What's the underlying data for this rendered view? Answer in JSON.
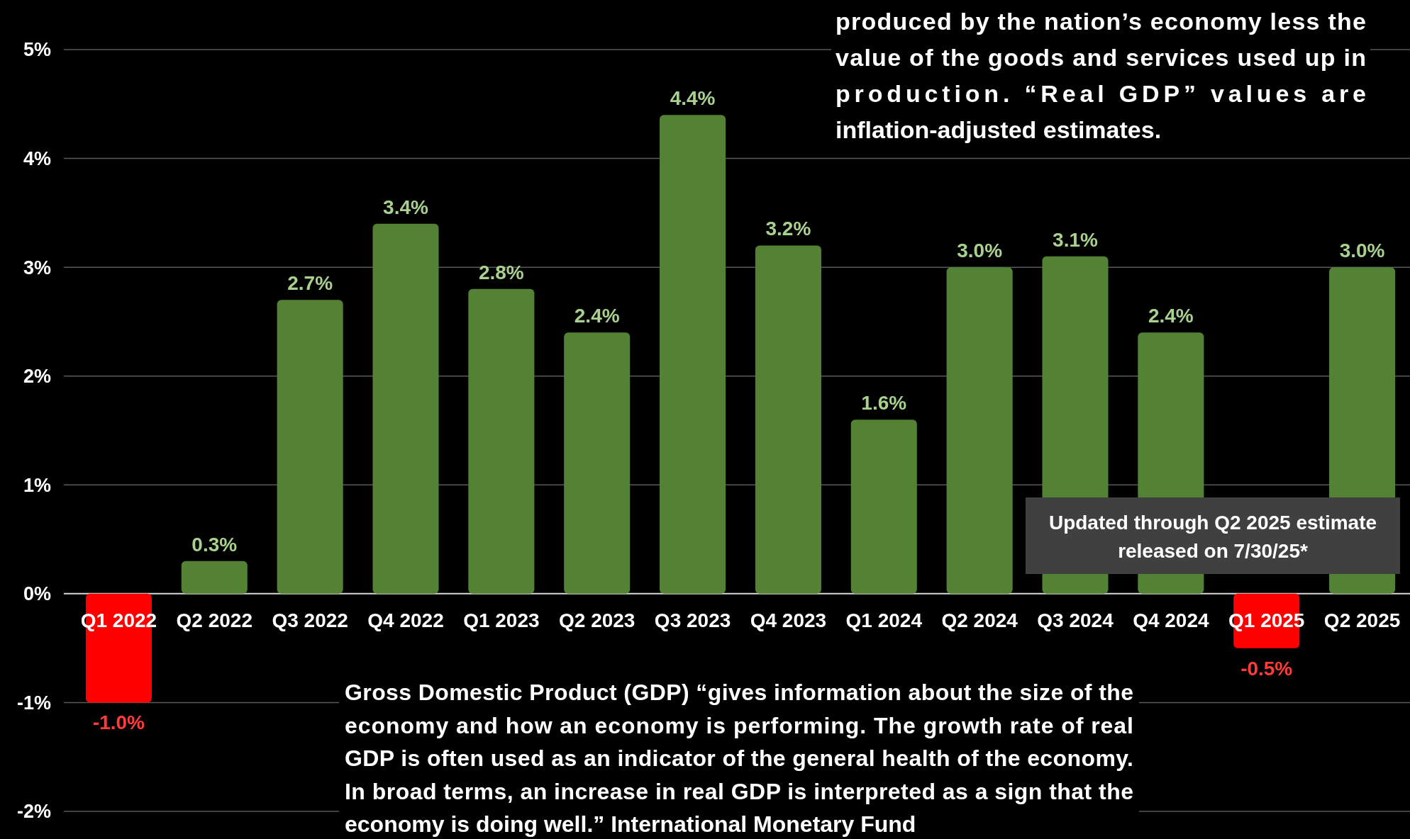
{
  "chart_data": {
    "type": "bar",
    "categories": [
      "Q1 2022",
      "Q2 2022",
      "Q3 2022",
      "Q4 2022",
      "Q1 2023",
      "Q2 2023",
      "Q3 2023",
      "Q4 2023",
      "Q1 2024",
      "Q2 2024",
      "Q3 2024",
      "Q4 2024",
      "Q1 2025",
      "Q2 2025"
    ],
    "values": [
      -1.0,
      0.3,
      2.7,
      3.4,
      2.8,
      2.4,
      4.4,
      3.2,
      1.6,
      3.0,
      3.1,
      2.4,
      -0.5,
      3.0
    ],
    "colors": [
      "#ff0000",
      "#548235",
      "#548235",
      "#548235",
      "#548235",
      "#548235",
      "#548235",
      "#548235",
      "#548235",
      "#548235",
      "#548235",
      "#548235",
      "#ff0000",
      "#548235"
    ],
    "value_labels": [
      "-1.0%",
      "0.3%",
      "2.7%",
      "3.4%",
      "2.8%",
      "2.4%",
      "4.4%",
      "3.2%",
      "1.6%",
      "3.0%",
      "3.1%",
      "2.4%",
      "-0.5%",
      "3.0%"
    ],
    "ylim": [
      -2,
      5
    ],
    "yticks": [
      {
        "value": -2,
        "label": "-2%"
      },
      {
        "value": -1,
        "label": "-1%"
      },
      {
        "value": 0,
        "label": "0%"
      },
      {
        "value": 1,
        "label": "1%"
      },
      {
        "value": 2,
        "label": "2%"
      },
      {
        "value": 3,
        "label": "3%"
      },
      {
        "value": 4,
        "label": "4%"
      },
      {
        "value": 5,
        "label": "5%"
      }
    ],
    "grid": "y",
    "annotations": [
      "produced by the nation’s economy less the value of the goods and services used up in production. “Real GDP” values are inflation-adjusted estimates.",
      "Updated through Q2 2025 estimate released on 7/30/25*",
      "Gross Domestic Product (GDP) “gives information about the size of the economy and how an economy is performing. The growth rate of real GDP is often used as an indicator of the general health of the economy. In broad terms, an increase in real GDP is interpreted as a sign that the economy is doing well.” International Monetary Fund"
    ]
  }
}
